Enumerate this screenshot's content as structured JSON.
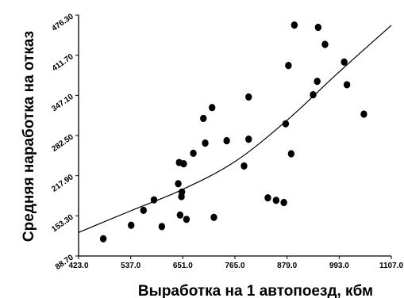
{
  "chart_data": {
    "type": "scatter",
    "xlabel": "Выработка на 1 автопоезд, кбм",
    "ylabel": "Средняя наработка на отказ",
    "xlim": [
      423.0,
      1107.0
    ],
    "ylim": [
      88.7,
      476.3
    ],
    "x_ticks": [
      "423.0",
      "537.0",
      "651.0",
      "765.0",
      "879.0",
      "993.0",
      "1107.0"
    ],
    "y_ticks": [
      "88.70",
      "153.30",
      "217.90",
      "282.50",
      "347.10",
      "411.70",
      "476.30"
    ],
    "grid": false,
    "legend": "none",
    "point_color": "#000000",
    "trend_color": "#000000",
    "trendline": {
      "type": "curve",
      "points": [
        [
          423.0,
          126.6
        ],
        [
          537.0,
          161.4
        ],
        [
          651.0,
          195.9
        ],
        [
          765.0,
          240.6
        ],
        [
          879.0,
          307.1
        ],
        [
          993.0,
          384.9
        ],
        [
          1107.0,
          459.9
        ]
      ]
    },
    "series": [
      {
        "points": [
          [
            477,
            116.5
          ],
          [
            538,
            138.1
          ],
          [
            565,
            162.2
          ],
          [
            588,
            179.0
          ],
          [
            605,
            136.0
          ],
          [
            643,
            239.1
          ],
          [
            641,
            205.0
          ],
          [
            645,
            154.6
          ],
          [
            648,
            184.3
          ],
          [
            649,
            191.6
          ],
          [
            653,
            237.1
          ],
          [
            659,
            147.6
          ],
          [
            674,
            254.0
          ],
          [
            696,
            310.0
          ],
          [
            700,
            270.4
          ],
          [
            715,
            327.5
          ],
          [
            719,
            150.9
          ],
          [
            747,
            274.2
          ],
          [
            785,
            233.5
          ],
          [
            795,
            276.6
          ],
          [
            795,
            344.5
          ],
          [
            837,
            182.3
          ],
          [
            855,
            178.3
          ],
          [
            872,
            174.8
          ],
          [
            876,
            301.4
          ],
          [
            882,
            395.2
          ],
          [
            888,
            253.2
          ],
          [
            895,
            460.2
          ],
          [
            936,
            348.1
          ],
          [
            945,
            369.7
          ],
          [
            947,
            456.5
          ],
          [
            962,
            429.1
          ],
          [
            1004,
            400.8
          ],
          [
            1010,
            364.2
          ],
          [
            1047,
            317.0
          ]
        ]
      }
    ]
  }
}
